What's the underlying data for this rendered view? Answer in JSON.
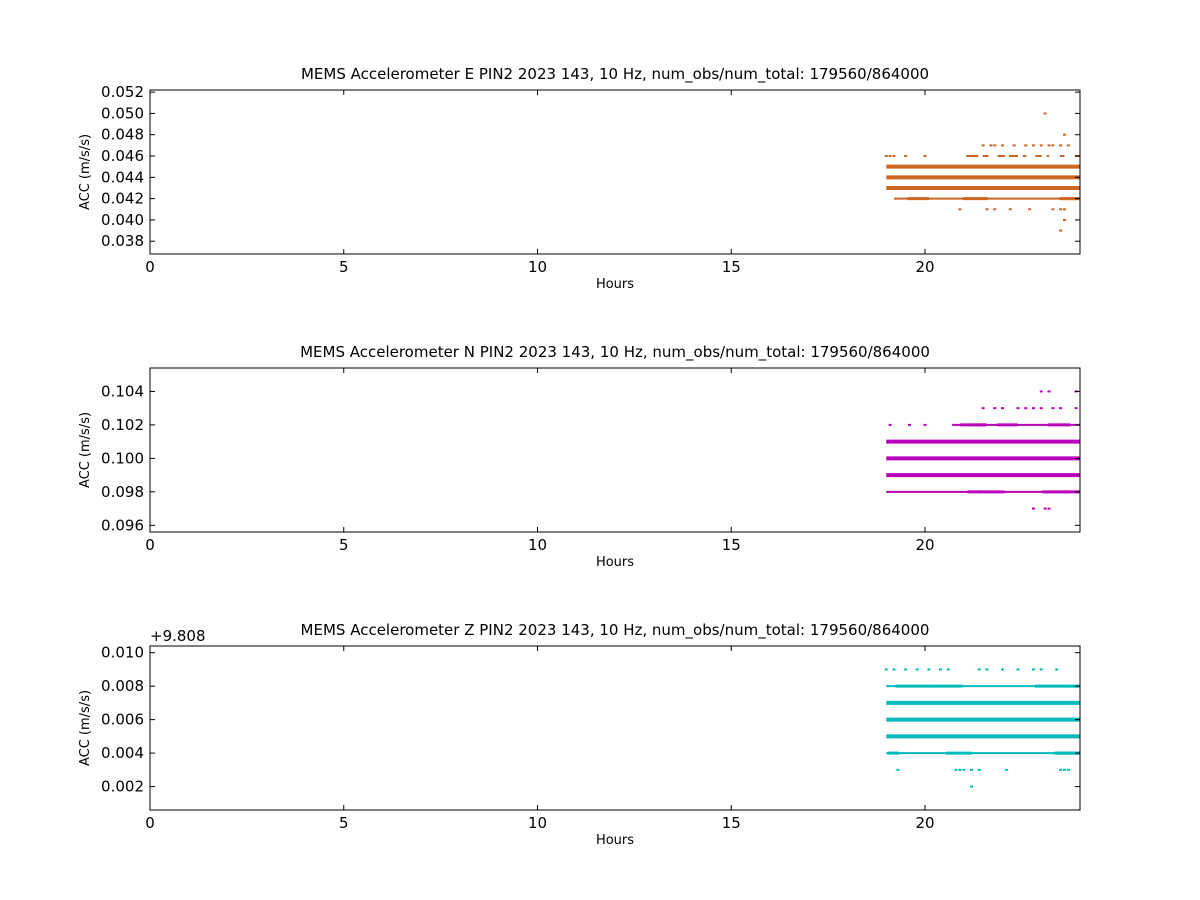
{
  "chart_data": [
    {
      "type": "scatter",
      "title": "MEMS Accelerometer E PIN2 2023 143, 10 Hz, num_obs/num_total: 179560/864000",
      "xlabel": "Hours",
      "ylabel": "ACC (m/s/s)",
      "offset_text": "",
      "xlim": [
        0,
        24
      ],
      "ylim": [
        0.0368,
        0.0522
      ],
      "xticks": [
        0,
        5,
        10,
        15,
        20
      ],
      "xtick_labels": [
        "0",
        "5",
        "10",
        "15",
        "20"
      ],
      "yticks": [
        0.038,
        0.04,
        0.042,
        0.044,
        0.046,
        0.048,
        0.05,
        0.052
      ],
      "ytick_labels": [
        "0.038",
        "0.040",
        "0.042",
        "0.044",
        "0.046",
        "0.048",
        "0.050",
        "0.052"
      ],
      "color": "#cc6622",
      "grid": false,
      "series": [
        {
          "bands": [
            {
              "y": 0.045,
              "x_start": 19.0,
              "x_end": 24.0,
              "weight": "heavy"
            },
            {
              "y": 0.044,
              "x_start": 19.0,
              "x_end": 24.0,
              "weight": "heavy"
            },
            {
              "y": 0.043,
              "x_start": 19.0,
              "x_end": 24.0,
              "weight": "heavy"
            },
            {
              "y": 0.042,
              "x_start": 19.2,
              "x_end": 24.0,
              "weight": "medium"
            },
            {
              "y": 0.046,
              "x_start": 21.1,
              "x_end": 24.0,
              "weight": "sparse"
            }
          ],
          "points": [
            {
              "x": 19.0,
              "y": 0.046
            },
            {
              "x": 19.1,
              "y": 0.046
            },
            {
              "x": 19.2,
              "y": 0.046
            },
            {
              "x": 19.5,
              "y": 0.046
            },
            {
              "x": 20.0,
              "y": 0.046
            },
            {
              "x": 21.1,
              "y": 0.046
            },
            {
              "x": 21.3,
              "y": 0.046
            },
            {
              "x": 21.6,
              "y": 0.046
            },
            {
              "x": 21.5,
              "y": 0.047
            },
            {
              "x": 21.7,
              "y": 0.047
            },
            {
              "x": 21.8,
              "y": 0.047
            },
            {
              "x": 22.0,
              "y": 0.047
            },
            {
              "x": 22.3,
              "y": 0.047
            },
            {
              "x": 22.6,
              "y": 0.047
            },
            {
              "x": 22.8,
              "y": 0.047
            },
            {
              "x": 23.0,
              "y": 0.047
            },
            {
              "x": 23.2,
              "y": 0.047
            },
            {
              "x": 23.3,
              "y": 0.047
            },
            {
              "x": 23.5,
              "y": 0.047
            },
            {
              "x": 23.7,
              "y": 0.047
            },
            {
              "x": 23.6,
              "y": 0.048
            },
            {
              "x": 23.1,
              "y": 0.05
            },
            {
              "x": 20.9,
              "y": 0.041
            },
            {
              "x": 21.6,
              "y": 0.041
            },
            {
              "x": 21.8,
              "y": 0.041
            },
            {
              "x": 22.2,
              "y": 0.041
            },
            {
              "x": 22.7,
              "y": 0.041
            },
            {
              "x": 23.3,
              "y": 0.041
            },
            {
              "x": 23.5,
              "y": 0.041
            },
            {
              "x": 23.6,
              "y": 0.041
            },
            {
              "x": 23.6,
              "y": 0.04
            },
            {
              "x": 23.5,
              "y": 0.039
            }
          ]
        }
      ]
    },
    {
      "type": "scatter",
      "title": "MEMS Accelerometer N PIN2 2023 143, 10 Hz, num_obs/num_total: 179560/864000",
      "xlabel": "Hours",
      "ylabel": "ACC (m/s/s)",
      "offset_text": "",
      "xlim": [
        0,
        24
      ],
      "ylim": [
        0.0956,
        0.1054
      ],
      "xticks": [
        0,
        5,
        10,
        15,
        20
      ],
      "xtick_labels": [
        "0",
        "5",
        "10",
        "15",
        "20"
      ],
      "yticks": [
        0.096,
        0.098,
        0.1,
        0.102,
        0.104
      ],
      "ytick_labels": [
        "0.096",
        "0.098",
        "0.100",
        "0.102",
        "0.104"
      ],
      "color": "#bb00bb",
      "grid": false,
      "series": [
        {
          "bands": [
            {
              "y": 0.101,
              "x_start": 19.0,
              "x_end": 24.0,
              "weight": "heavy"
            },
            {
              "y": 0.1,
              "x_start": 19.0,
              "x_end": 24.0,
              "weight": "heavy"
            },
            {
              "y": 0.099,
              "x_start": 19.0,
              "x_end": 24.0,
              "weight": "heavy"
            },
            {
              "y": 0.098,
              "x_start": 19.0,
              "x_end": 24.0,
              "weight": "medium"
            },
            {
              "y": 0.102,
              "x_start": 20.7,
              "x_end": 24.0,
              "weight": "medium"
            }
          ],
          "points": [
            {
              "x": 19.1,
              "y": 0.102
            },
            {
              "x": 19.6,
              "y": 0.102
            },
            {
              "x": 20.0,
              "y": 0.102
            },
            {
              "x": 21.5,
              "y": 0.103
            },
            {
              "x": 21.8,
              "y": 0.103
            },
            {
              "x": 22.0,
              "y": 0.103
            },
            {
              "x": 22.4,
              "y": 0.103
            },
            {
              "x": 22.6,
              "y": 0.103
            },
            {
              "x": 22.8,
              "y": 0.103
            },
            {
              "x": 23.0,
              "y": 0.103
            },
            {
              "x": 23.3,
              "y": 0.103
            },
            {
              "x": 23.5,
              "y": 0.103
            },
            {
              "x": 23.9,
              "y": 0.103
            },
            {
              "x": 23.0,
              "y": 0.104
            },
            {
              "x": 23.2,
              "y": 0.104
            },
            {
              "x": 23.9,
              "y": 0.104
            },
            {
              "x": 22.8,
              "y": 0.097
            },
            {
              "x": 23.1,
              "y": 0.097
            },
            {
              "x": 23.2,
              "y": 0.097
            }
          ]
        }
      ]
    },
    {
      "type": "scatter",
      "title": "MEMS Accelerometer Z PIN2 2023 143, 10 Hz, num_obs/num_total: 179560/864000",
      "xlabel": "Hours",
      "ylabel": "ACC (m/s/s)",
      "offset_text": "+9.808",
      "xlim": [
        0,
        24
      ],
      "ylim": [
        0.0006,
        0.0104
      ],
      "xticks": [
        0,
        5,
        10,
        15,
        20
      ],
      "xtick_labels": [
        "0",
        "5",
        "10",
        "15",
        "20"
      ],
      "yticks": [
        0.002,
        0.004,
        0.006,
        0.008,
        0.01
      ],
      "ytick_labels": [
        "0.002",
        "0.004",
        "0.006",
        "0.008",
        "0.010"
      ],
      "color": "#00bbbb",
      "grid": false,
      "series": [
        {
          "bands": [
            {
              "y": 0.007,
              "x_start": 19.0,
              "x_end": 24.0,
              "weight": "heavy"
            },
            {
              "y": 0.006,
              "x_start": 19.0,
              "x_end": 24.0,
              "weight": "heavy"
            },
            {
              "y": 0.005,
              "x_start": 19.0,
              "x_end": 24.0,
              "weight": "heavy"
            },
            {
              "y": 0.008,
              "x_start": 19.0,
              "x_end": 24.0,
              "weight": "medium"
            },
            {
              "y": 0.004,
              "x_start": 19.0,
              "x_end": 24.0,
              "weight": "medium"
            }
          ],
          "points": [
            {
              "x": 19.0,
              "y": 0.009
            },
            {
              "x": 19.2,
              "y": 0.009
            },
            {
              "x": 19.5,
              "y": 0.009
            },
            {
              "x": 19.8,
              "y": 0.009
            },
            {
              "x": 20.1,
              "y": 0.009
            },
            {
              "x": 20.4,
              "y": 0.009
            },
            {
              "x": 20.6,
              "y": 0.009
            },
            {
              "x": 21.4,
              "y": 0.009
            },
            {
              "x": 21.6,
              "y": 0.009
            },
            {
              "x": 22.0,
              "y": 0.009
            },
            {
              "x": 22.4,
              "y": 0.009
            },
            {
              "x": 22.8,
              "y": 0.009
            },
            {
              "x": 23.0,
              "y": 0.009
            },
            {
              "x": 23.4,
              "y": 0.009
            },
            {
              "x": 19.3,
              "y": 0.003
            },
            {
              "x": 20.8,
              "y": 0.003
            },
            {
              "x": 20.9,
              "y": 0.003
            },
            {
              "x": 21.0,
              "y": 0.003
            },
            {
              "x": 21.2,
              "y": 0.003
            },
            {
              "x": 21.4,
              "y": 0.003
            },
            {
              "x": 22.1,
              "y": 0.003
            },
            {
              "x": 23.5,
              "y": 0.003
            },
            {
              "x": 23.6,
              "y": 0.003
            },
            {
              "x": 23.7,
              "y": 0.003
            },
            {
              "x": 21.2,
              "y": 0.002
            }
          ]
        }
      ]
    }
  ]
}
